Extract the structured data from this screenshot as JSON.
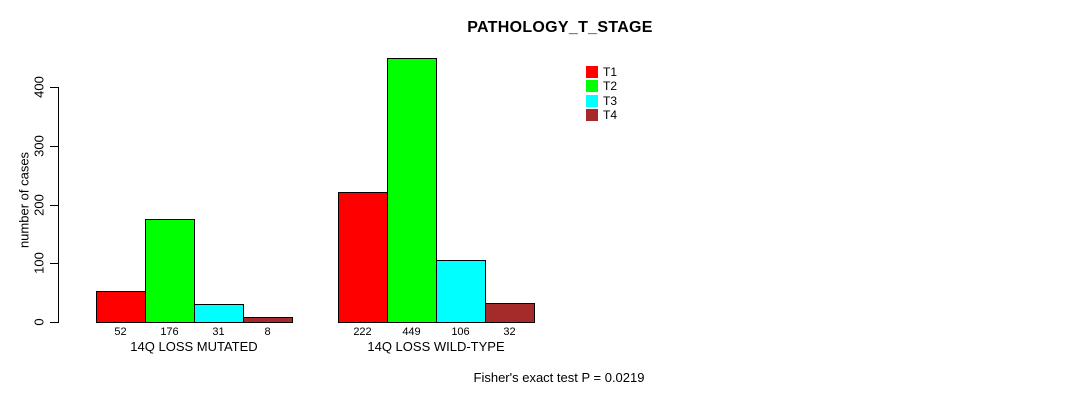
{
  "chart_data": {
    "type": "bar",
    "grouped": true,
    "title": "PATHOLOGY_T_STAGE",
    "ylabel": "number of cases",
    "xlabel": "",
    "ylim": [
      0,
      400
    ],
    "yticks": [
      0,
      100,
      200,
      300,
      400
    ],
    "categories": [
      "14Q LOSS MUTATED",
      "14Q LOSS WILD-TYPE"
    ],
    "series": [
      {
        "name": "T1",
        "color": "#ff0000",
        "values": [
          52,
          222
        ]
      },
      {
        "name": "T2",
        "color": "#00ff00",
        "values": [
          176,
          449
        ]
      },
      {
        "name": "T3",
        "color": "#00ffff",
        "values": [
          31,
          106
        ]
      },
      {
        "name": "T4",
        "color": "#a52a2a",
        "values": [
          8,
          32
        ]
      }
    ],
    "bar_value_labels": [
      [
        "52",
        "176",
        "31",
        "8"
      ],
      [
        "222",
        "449",
        "106",
        "32"
      ]
    ],
    "legend": [
      "T1",
      "T2",
      "T3",
      "T4"
    ],
    "legend_position": "top-right-inside",
    "grid": false,
    "background_color": "#ffffff",
    "text_color": "#000000",
    "annotation": "Fisher's exact test P = 0.0219"
  }
}
